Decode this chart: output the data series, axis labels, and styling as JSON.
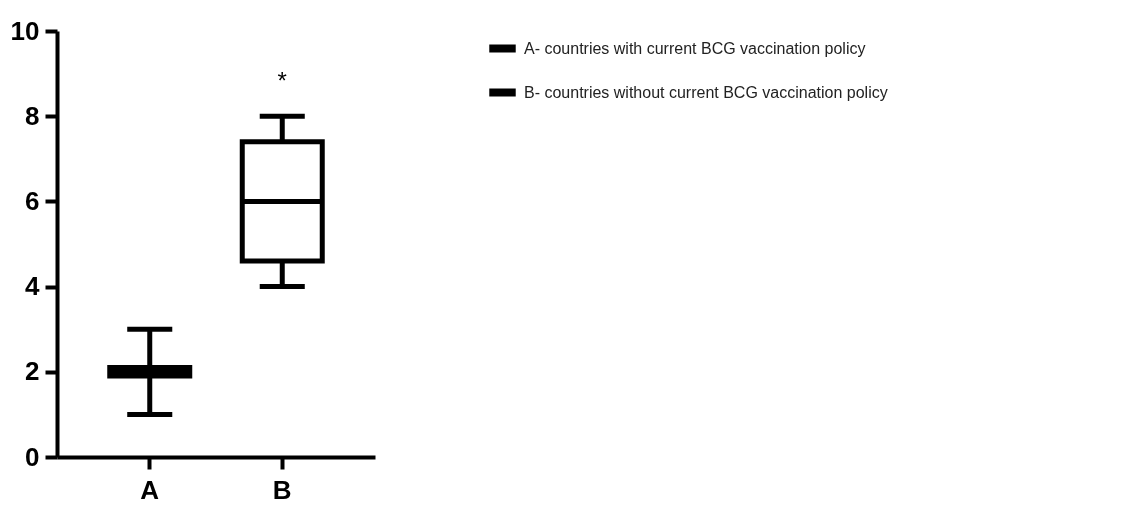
{
  "chart_data": {
    "type": "box",
    "categories": [
      "A",
      "B"
    ],
    "series": [
      {
        "name": "A- countries with current BCG vaccination policy",
        "color": "#000000",
        "boxes": [
          {
            "low": 1,
            "q1": 1.9,
            "median": 2,
            "q3": 2.1,
            "high": 3
          },
          null
        ]
      },
      {
        "name": "B- countries without current BCG vaccination policy",
        "color": "#000000",
        "boxes": [
          null,
          {
            "low": 4,
            "q1": 4.6,
            "median": 6,
            "q3": 7.4,
            "high": 8
          }
        ]
      }
    ],
    "ylim": [
      0,
      10
    ],
    "yticks": [
      0,
      2,
      4,
      6,
      8,
      10
    ],
    "annotations": [
      "*"
    ],
    "legend": "top right"
  }
}
